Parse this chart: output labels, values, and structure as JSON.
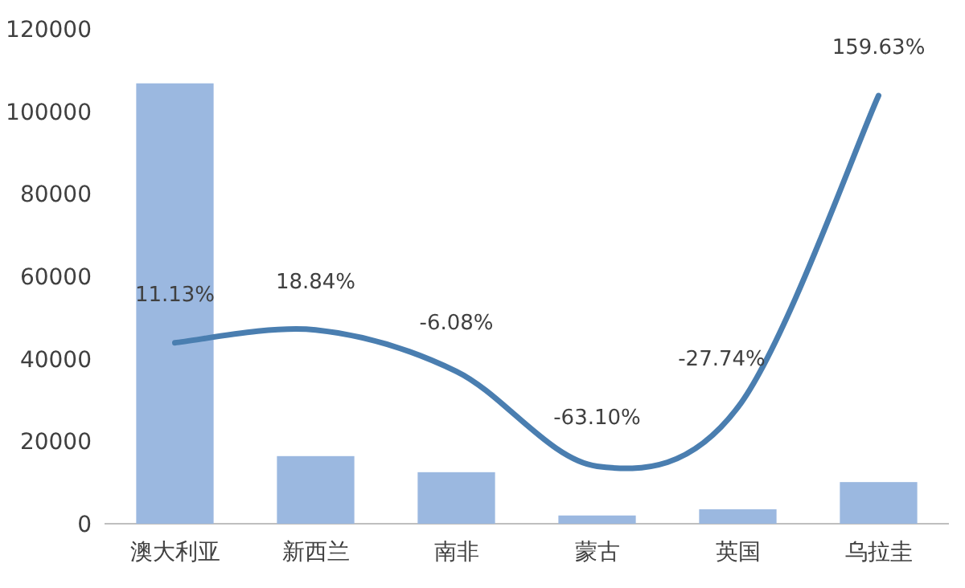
{
  "chart_data": {
    "type": "bar",
    "categories": [
      "澳大利亚",
      "新西兰",
      "南非",
      "蒙古",
      "英国",
      "乌拉圭"
    ],
    "series": [
      {
        "color": "#9bb8e0",
        "values": [
          106800,
          16400,
          12500,
          2000,
          3500,
          10100
        ]
      },
      {
        "type": "line",
        "axis": "y2",
        "color": "#4a7eb0",
        "values": [
          11.13,
          18.84,
          -6.08,
          -63.1,
          -27.74,
          159.63
        ],
        "value_labels": [
          "11.13%",
          "18.84%",
          "-6.08%",
          "-63.10%",
          "-27.74%",
          "159.63%"
        ]
      }
    ],
    "ylim": [
      0,
      120000
    ],
    "yticks": [
      0,
      20000,
      40000,
      60000,
      80000,
      100000,
      120000
    ],
    "grid": false
  }
}
